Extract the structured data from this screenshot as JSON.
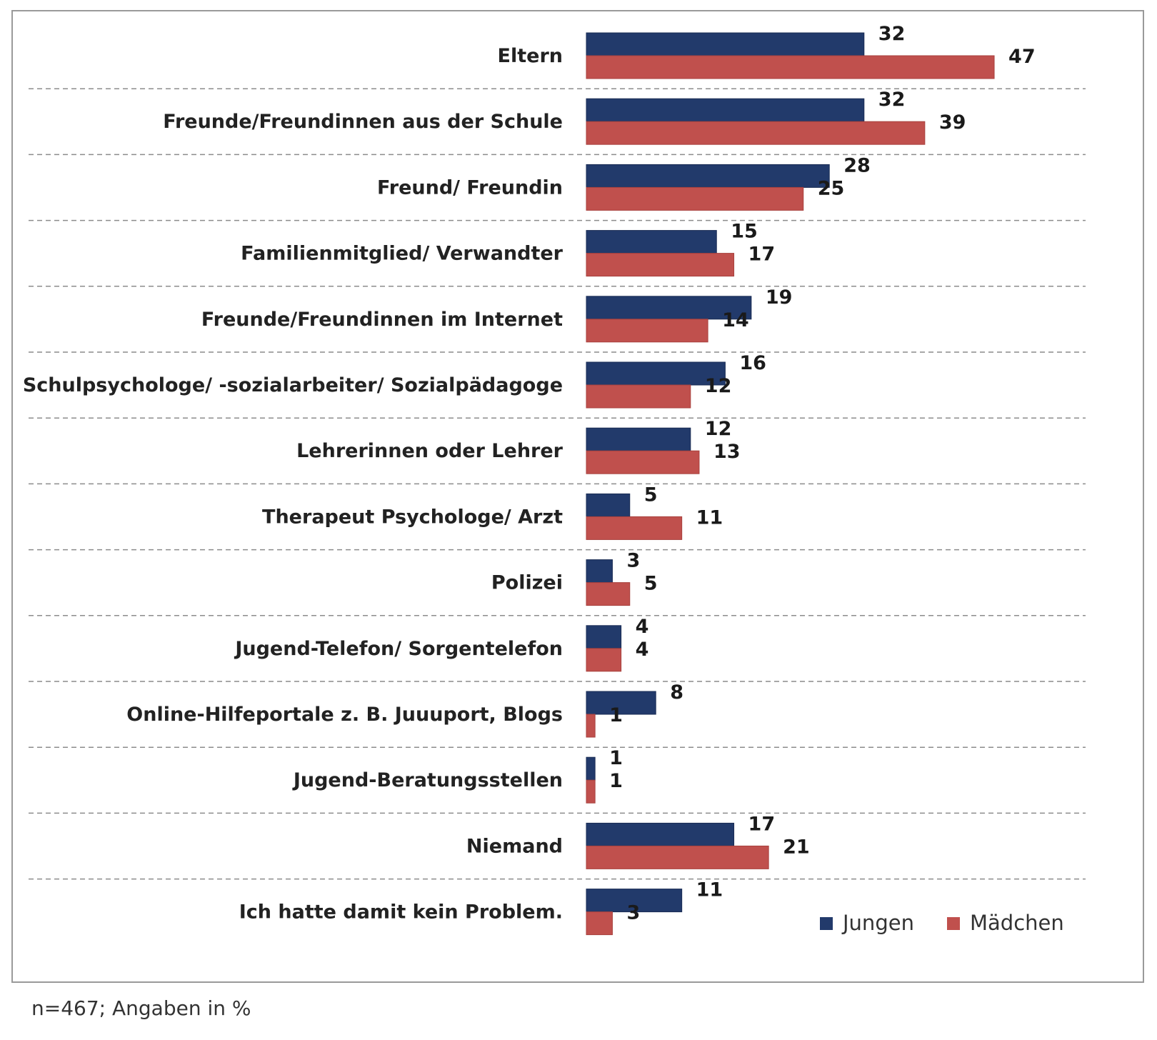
{
  "chart_data": {
    "type": "bar",
    "orientation": "horizontal",
    "categories": [
      "Eltern",
      "Freunde/Freundinnen aus der Schule",
      "Freund/ Freundin",
      "Familienmitglied/ Verwandter",
      "Freunde/Freundinnen im Internet",
      "Schulpsychologe/ -sozialarbeiter/ Sozialpädagoge",
      "Lehrerinnen oder Lehrer",
      "Therapeut  Psychologe/ Arzt",
      "Polizei",
      "Jugend-Telefon/ Sorgentelefon",
      "Online-Hilfeportale z. B. Juuuport, Blogs",
      "Jugend-Beratungsstellen",
      "Niemand",
      "Ich hatte damit kein Problem."
    ],
    "series": [
      {
        "name": "Jungen",
        "color": "#223a6b",
        "values": [
          32,
          32,
          28,
          15,
          19,
          16,
          12,
          5,
          3,
          4,
          8,
          1,
          17,
          11
        ]
      },
      {
        "name": "Mädchen",
        "color": "#c0504d",
        "values": [
          47,
          39,
          25,
          17,
          14,
          12,
          13,
          11,
          5,
          4,
          1,
          1,
          21,
          3
        ]
      }
    ],
    "xlim": [
      0,
      50
    ],
    "grid": false,
    "category_separators": "dashed",
    "legend_position": "bottom-right",
    "data_labels": true
  },
  "footnote": "n=467; Angaben in %"
}
